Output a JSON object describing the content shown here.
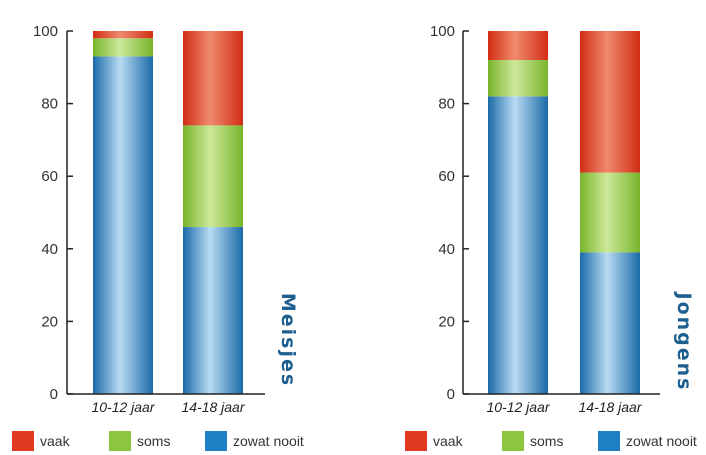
{
  "chart_data": [
    {
      "type": "bar",
      "stacked": true,
      "title": "",
      "panel_label": "Meisjes",
      "categories": [
        "10-12 jaar",
        "14-18 jaar"
      ],
      "series": [
        {
          "name": "zowat nooit",
          "values": [
            93,
            46
          ]
        },
        {
          "name": "soms",
          "values": [
            5,
            28
          ]
        },
        {
          "name": "vaak",
          "values": [
            2,
            26
          ]
        }
      ],
      "ylim": [
        0,
        100
      ],
      "yticks": [
        "0",
        "20",
        "40",
        "60",
        "80",
        "100"
      ],
      "grid": false,
      "legend_position": "bottom"
    },
    {
      "type": "bar",
      "stacked": true,
      "title": "",
      "panel_label": "Jongens",
      "categories": [
        "10-12 jaar",
        "14-18 jaar"
      ],
      "series": [
        {
          "name": "zowat nooit",
          "values": [
            82,
            39
          ]
        },
        {
          "name": "soms",
          "values": [
            10,
            22
          ]
        },
        {
          "name": "vaak",
          "values": [
            8,
            39
          ]
        }
      ],
      "ylim": [
        0,
        100
      ],
      "yticks": [
        "0",
        "20",
        "40",
        "60",
        "80",
        "100"
      ],
      "grid": false,
      "legend_position": "bottom"
    }
  ],
  "legend": [
    {
      "label": "vaak",
      "color": "#e0391f"
    },
    {
      "label": "soms",
      "color": "#8cc63f"
    },
    {
      "label": "zowat nooit",
      "color": "#1f7fc4"
    }
  ],
  "colors": {
    "vaak": "#e0391f",
    "soms": "#8cc63f",
    "zowat nooit": "#1f7fc4",
    "axis": "#222222",
    "panel_label": "#1d5f8f"
  }
}
